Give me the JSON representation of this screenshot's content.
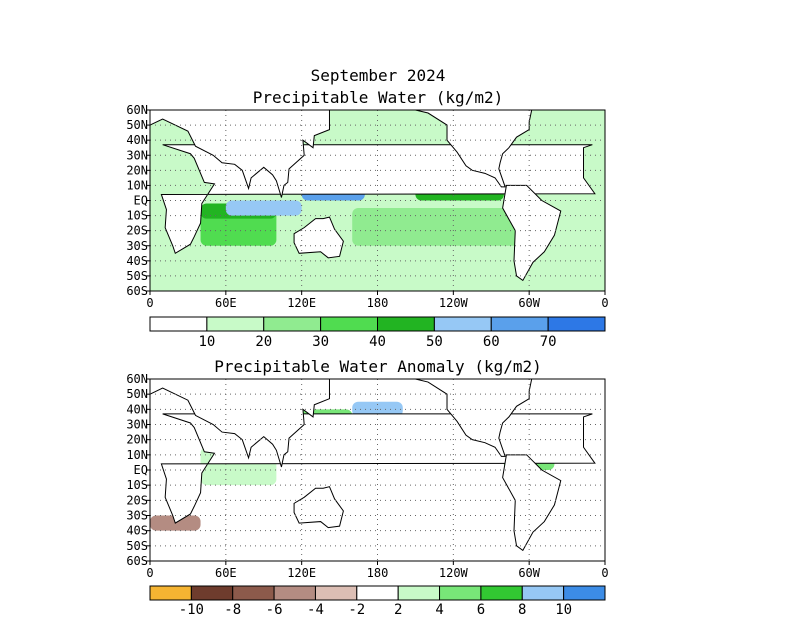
{
  "chart_data": [
    {
      "type": "heatmap",
      "title": "September 2024",
      "subtitle": "Precipitable Water (kg/m2)",
      "xlabel": "",
      "ylabel": "",
      "x_ticks": [
        "0",
        "60E",
        "120E",
        "180",
        "120W",
        "60W",
        "0"
      ],
      "y_ticks": [
        "60N",
        "50N",
        "40N",
        "30N",
        "20N",
        "10N",
        "EQ",
        "10S",
        "20S",
        "30S",
        "40S",
        "50S",
        "60S"
      ],
      "xlim": [
        0,
        360
      ],
      "ylim": [
        -60,
        60
      ],
      "grid": true,
      "colorbar": {
        "colors": [
          "#ffffff",
          "#c8fac8",
          "#90eb90",
          "#50dc50",
          "#22b422",
          "#96c8f5",
          "#5aa0eb",
          "#2d78e6"
        ],
        "labels": [
          "10",
          "20",
          "30",
          "40",
          "50",
          "60",
          "70"
        ]
      },
      "regions": [
        {
          "lon": [
            60,
            300
          ],
          "lat": [
            -50,
            -30
          ],
          "level": 1
        },
        {
          "lon": [
            160,
            300
          ],
          "lat": [
            -30,
            -5
          ],
          "level": 2
        },
        {
          "lon": [
            40,
            100
          ],
          "lat": [
            -30,
            -5
          ],
          "level": 3
        },
        {
          "lon": [
            40,
            100
          ],
          "lat": [
            -12,
            -2
          ],
          "level": 4
        },
        {
          "lon": [
            210,
            280
          ],
          "lat": [
            0,
            30
          ],
          "level": 4
        },
        {
          "lon": [
            120,
            180
          ],
          "lat": [
            10,
            30
          ],
          "level": 4
        },
        {
          "lon": [
            60,
            120
          ],
          "lat": [
            -10,
            0
          ],
          "level": 5
        },
        {
          "lon": [
            180,
            280
          ],
          "lat": [
            8,
            15
          ],
          "level": 5
        },
        {
          "lon": [
            120,
            170
          ],
          "lat": [
            0,
            30
          ],
          "level": 6
        },
        {
          "lon": [
            270,
            300
          ],
          "lat": [
            15,
            30
          ],
          "level": 5
        }
      ]
    },
    {
      "type": "heatmap",
      "title": "Precipitable Water Anomaly (kg/m2)",
      "xlabel": "",
      "ylabel": "",
      "x_ticks": [
        "0",
        "60E",
        "120E",
        "180",
        "120W",
        "60W",
        "0"
      ],
      "y_ticks": [
        "60N",
        "50N",
        "40N",
        "30N",
        "20N",
        "10N",
        "EQ",
        "10S",
        "20S",
        "30S",
        "40S",
        "50S",
        "60S"
      ],
      "xlim": [
        0,
        360
      ],
      "ylim": [
        -60,
        60
      ],
      "grid": true,
      "colorbar": {
        "colors": [
          "#f5b432",
          "#6e3c2d",
          "#8c5a4b",
          "#b48c82",
          "#dcbeb4",
          "#ffffff",
          "#c8fac8",
          "#78e678",
          "#32c832",
          "#96c8f5",
          "#3c8ce6"
        ],
        "labels": [
          "-10",
          "-8",
          "-6",
          "-4",
          "-2",
          "2",
          "4",
          "6",
          "8",
          "10"
        ]
      },
      "regions": [
        {
          "lon": [
            40,
            100
          ],
          "lat": [
            -10,
            15
          ],
          "level": 6
        },
        {
          "lon": [
            280,
            320
          ],
          "lat": [
            0,
            30
          ],
          "level": 7
        },
        {
          "lon": [
            120,
            160
          ],
          "lat": [
            20,
            40
          ],
          "level": 7
        },
        {
          "lon": [
            160,
            200
          ],
          "lat": [
            35,
            45
          ],
          "level": 9
        },
        {
          "lon": [
            210,
            230
          ],
          "lat": [
            15,
            25
          ],
          "level": 2
        },
        {
          "lon": [
            0,
            40
          ],
          "lat": [
            -40,
            -30
          ],
          "level": 3
        }
      ]
    }
  ]
}
